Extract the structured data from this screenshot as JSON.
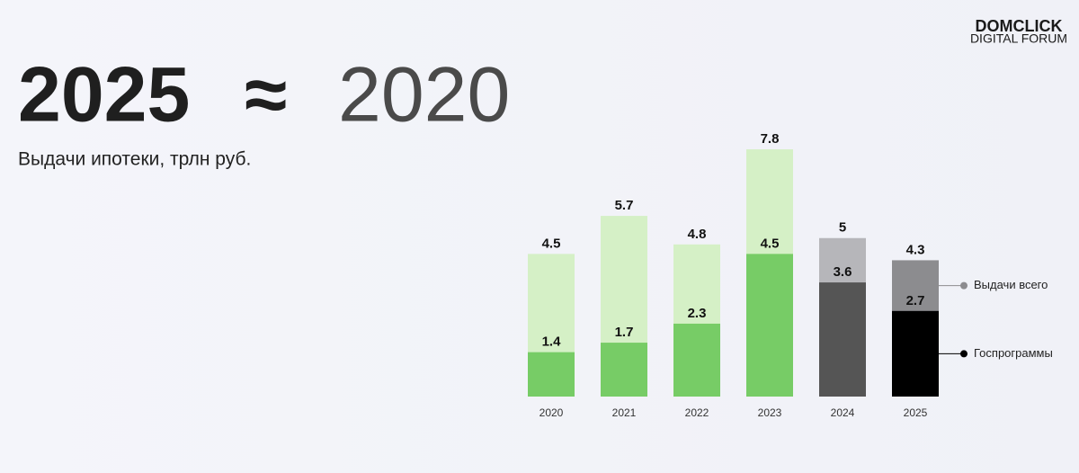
{
  "heading": [
    "2025",
    "≈",
    "2020"
  ],
  "logo": [
    "DOMCLICK",
    "DIGITAL FORUM"
  ],
  "chart_data": {
    "type": "bar",
    "title": "Выдачи ипотеки, трлн руб.",
    "categories": [
      "2020",
      "2021",
      "2022",
      "2023",
      "2024",
      "2025"
    ],
    "series": [
      {
        "name": "Выдачи всего",
        "color": "#8c8c8f",
        "colors": [
          "#d5f0c6",
          "#d5f0c6",
          "#d5f0c6",
          "#d5f0c6",
          "#b6b6ba",
          "#8c8c8f"
        ],
        "values": [
          4.5,
          5.7,
          4.8,
          7.8,
          5,
          4.3
        ]
      },
      {
        "name": "Госпрограммы",
        "color": "#000000",
        "colors": [
          "#77cc66",
          "#77cc66",
          "#77cc66",
          "#77cc66",
          "#555555",
          "#000000"
        ],
        "values": [
          1.4,
          1.7,
          2.3,
          4.5,
          3.6,
          2.7
        ]
      }
    ],
    "ylim": [
      0,
      8
    ]
  }
}
